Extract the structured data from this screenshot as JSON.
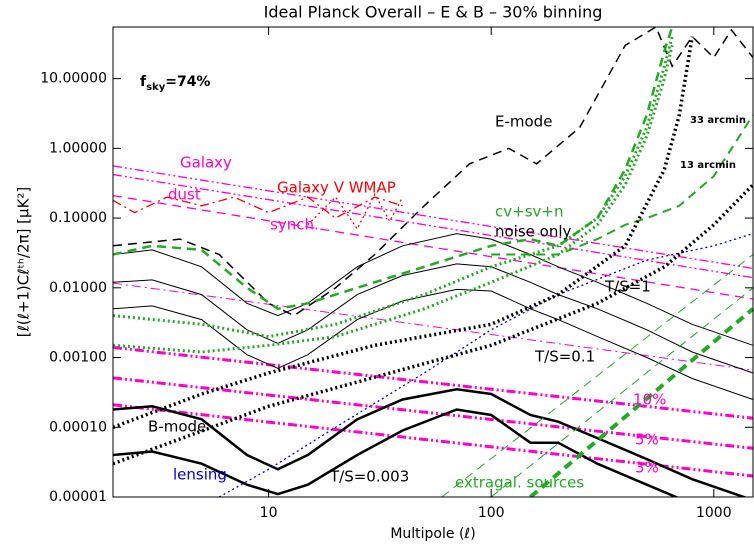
{
  "chart_data": {
    "type": "line",
    "title": "Ideal Planck Overall – E & B – 30% binning",
    "xlabel": "Multipole (ℓ)",
    "ylabel": "[ℓ(ℓ+1)Cℓᵗʰ/2π]  [μK²]",
    "xlog": true,
    "ylog": true,
    "xlim": [
      2,
      1500
    ],
    "ylim": [
      1e-05,
      55
    ],
    "xticks": [
      10,
      100,
      1000
    ],
    "yticks": [
      {
        "value": 10,
        "label": "10.00000"
      },
      {
        "value": 1,
        "label": "1.00000"
      },
      {
        "value": 0.1,
        "label": "0.10000"
      },
      {
        "value": 0.01,
        "label": "0.01000"
      },
      {
        "value": 0.001,
        "label": "0.00100"
      },
      {
        "value": 0.0001,
        "label": "0.00010"
      },
      {
        "value": 1e-05,
        "label": "0.00001"
      }
    ],
    "fsky": {
      "base": "f",
      "sub": "sky",
      "rest": "=74%"
    },
    "annotations": [
      {
        "text": "Galaxy",
        "color": "#ff00cc"
      },
      {
        "text": "dust",
        "color": "#ff00cc"
      },
      {
        "text": "Galaxy V WMAP",
        "color": "#ff0000"
      },
      {
        "text": "synch.",
        "color": "#ff00cc"
      },
      {
        "text": "E-mode",
        "color": "#000000"
      },
      {
        "text": "33 arcmin",
        "color": "#000000"
      },
      {
        "text": "13 arcmin",
        "color": "#000000"
      },
      {
        "text": "cv+sv+n",
        "color": "#22aa22"
      },
      {
        "text": "noise only",
        "color": "#000000"
      },
      {
        "text": "T/S=1",
        "color": "#000000"
      },
      {
        "text": "T/S=0.1",
        "color": "#000000"
      },
      {
        "text": "10%",
        "color": "#ff00cc"
      },
      {
        "text": "5%",
        "color": "#ff00cc"
      },
      {
        "text": "3%",
        "color": "#ff00cc"
      },
      {
        "text": "B-mode",
        "color": "#000000"
      },
      {
        "text": "lensing",
        "color": "#0000cc"
      },
      {
        "text": "T/S=0.003",
        "color": "#000000"
      },
      {
        "text": "extragal. sources",
        "color": "#22aa22"
      }
    ],
    "series": [
      {
        "color": "#ff00cc",
        "style": "dashdotdot",
        "width": 1.3,
        "x": [
          2,
          1500
        ],
        "values": [
          0.56,
          0.019
        ]
      },
      {
        "color": "#ff00cc",
        "style": "dashdotdot",
        "width": 1.3,
        "x": [
          2,
          1500
        ],
        "values": [
          0.42,
          0.014
        ]
      },
      {
        "color": "#ff00cc",
        "style": "dashed",
        "width": 1.3,
        "x": [
          2,
          1500
        ],
        "values": [
          0.21,
          0.0069
        ]
      },
      {
        "color": "#ff00cc",
        "style": "dashdot",
        "width": 1,
        "x": [
          2,
          1500
        ],
        "values": [
          0.0117,
          0.00066
        ]
      },
      {
        "color": "#ff00cc",
        "style": "dashdotdot",
        "width": 3,
        "x": [
          2,
          1500
        ],
        "values": [
          0.0014,
          0.000135
        ]
      },
      {
        "color": "#ff00cc",
        "style": "dashdotdot",
        "width": 3,
        "x": [
          2,
          1500
        ],
        "values": [
          0.00051,
          5e-05
        ]
      },
      {
        "color": "#ff00cc",
        "style": "dashdotdot",
        "width": 3,
        "x": [
          2,
          1500
        ],
        "values": [
          0.00021,
          2e-05
        ]
      },
      {
        "color": "#ff0000",
        "style": "dashdot",
        "width": 1.3,
        "x": [
          2,
          2.5,
          3.5,
          5,
          7,
          10,
          15,
          20,
          30,
          40
        ],
        "values": [
          0.18,
          0.12,
          0.2,
          0.15,
          0.2,
          0.12,
          0.2,
          0.1,
          0.2,
          0.15
        ]
      },
      {
        "color": "#ff0000",
        "style": "dotted",
        "width": 1.3,
        "x": [
          15,
          20,
          25,
          30,
          35,
          40
        ],
        "values": [
          0.08,
          0.2,
          0.07,
          0.22,
          0.09,
          0.2
        ]
      },
      {
        "color": "#000000",
        "style": "dashed",
        "width": 1.5,
        "x": [
          2,
          4,
          6,
          10,
          13,
          20,
          30,
          50,
          80,
          120,
          160,
          250,
          400,
          550,
          650,
          800,
          1000,
          1200,
          1500
        ],
        "values": [
          0.04,
          0.05,
          0.03,
          0.006,
          0.004,
          0.01,
          0.03,
          0.15,
          0.6,
          1.0,
          0.6,
          2,
          30,
          55,
          15,
          40,
          20,
          50,
          20
        ]
      },
      {
        "color": "#000000",
        "style": "solid",
        "width": 1,
        "x": [
          2,
          3,
          5,
          8,
          11,
          15,
          25,
          40,
          70,
          100,
          150,
          200,
          300,
          500,
          800,
          1500
        ],
        "values": [
          0.03,
          0.035,
          0.02,
          0.006,
          0.004,
          0.006,
          0.02,
          0.04,
          0.06,
          0.05,
          0.03,
          0.02,
          0.012,
          0.006,
          0.003,
          0.0015
        ]
      },
      {
        "color": "#000000",
        "style": "solid",
        "width": 1,
        "x": [
          2,
          3,
          5,
          8,
          11,
          15,
          25,
          40,
          70,
          100,
          150,
          200,
          300,
          500,
          800,
          1500
        ],
        "values": [
          0.012,
          0.013,
          0.008,
          0.0025,
          0.0016,
          0.0025,
          0.008,
          0.015,
          0.022,
          0.02,
          0.012,
          0.008,
          0.005,
          0.0025,
          0.0012,
          0.0006
        ]
      },
      {
        "color": "#000000",
        "style": "solid",
        "width": 1,
        "x": [
          2,
          3,
          5,
          8,
          11,
          15,
          25,
          40,
          70,
          100,
          150,
          200,
          300,
          500,
          800,
          1500
        ],
        "values": [
          0.005,
          0.0055,
          0.0035,
          0.0011,
          0.0007,
          0.0011,
          0.0035,
          0.0065,
          0.0095,
          0.009,
          0.005,
          0.0035,
          0.002,
          0.001,
          0.0005,
          0.00025
        ]
      },
      {
        "color": "#000000",
        "style": "solid",
        "width": 2.5,
        "x": [
          2,
          3,
          5,
          8,
          11,
          15,
          25,
          40,
          70,
          100,
          150,
          200,
          300,
          500,
          800,
          1500
        ],
        "values": [
          0.00018,
          0.0002,
          0.00013,
          4e-05,
          2.5e-05,
          4e-05,
          0.00013,
          0.00025,
          0.00035,
          0.0003,
          0.00015,
          0.00012,
          7e-05,
          3.5e-05,
          1.8e-05,
          9e-06
        ]
      },
      {
        "color": "#000000",
        "style": "solid",
        "width": 2.5,
        "x": [
          2,
          3,
          5,
          8,
          11,
          15,
          25,
          40,
          70,
          100,
          150,
          200,
          300,
          500,
          800,
          1500
        ],
        "values": [
          4e-05,
          4.5e-05,
          3e-05,
          1.5e-05,
          1.1e-05,
          1.5e-05,
          4e-05,
          9e-05,
          0.00018,
          0.00015,
          6e-05,
          6e-05,
          3e-05,
          1.5e-05,
          8e-06,
          4e-06
        ]
      },
      {
        "color": "#0000cc",
        "style": "dotted",
        "width": 1.3,
        "x": [
          6,
          10,
          20,
          50,
          100,
          200,
          500,
          1000,
          1500
        ],
        "values": [
          1e-05,
          2.5e-05,
          0.0001,
          0.0006,
          0.0025,
          0.008,
          0.025,
          0.04,
          0.06
        ]
      },
      {
        "color": "#22aa22",
        "style": "dotted",
        "width": 3,
        "x": [
          2,
          5,
          10,
          20,
          50,
          100,
          200,
          300,
          400,
          500,
          600,
          650
        ],
        "values": [
          0.004,
          0.003,
          0.002,
          0.003,
          0.008,
          0.02,
          0.04,
          0.1,
          0.4,
          2,
          15,
          40
        ]
      },
      {
        "color": "#22aa22",
        "style": "dotted",
        "width": 3,
        "x": [
          2,
          5,
          10,
          20,
          50,
          100,
          200,
          300,
          400,
          500,
          600,
          650
        ],
        "values": [
          0.0015,
          0.0012,
          0.0015,
          0.002,
          0.005,
          0.012,
          0.03,
          0.08,
          0.3,
          1.5,
          10,
          30
        ]
      },
      {
        "color": "#22aa22",
        "style": "dashed",
        "width": 2.5,
        "x": [
          2,
          3,
          5,
          8,
          11,
          15,
          25,
          50,
          100,
          150,
          200,
          300,
          400,
          500,
          600,
          650
        ],
        "values": [
          0.03,
          0.04,
          0.035,
          0.01,
          0.005,
          0.006,
          0.01,
          0.02,
          0.04,
          0.05,
          0.04,
          0.1,
          0.5,
          3,
          25,
          55
        ]
      },
      {
        "color": "#22aa22",
        "style": "dashed",
        "width": 2,
        "x": [
          100,
          200,
          300,
          400,
          500,
          700,
          1000,
          1500
        ],
        "values": [
          0.03,
          0.03,
          0.05,
          0.08,
          0.1,
          0.15,
          0.4,
          3
        ]
      },
      {
        "color": "#000000",
        "style": "dotted",
        "width": 3.5,
        "x": [
          2,
          5,
          10,
          30,
          100,
          200,
          400,
          600,
          700,
          800
        ],
        "values": [
          0.0001,
          0.0003,
          0.0006,
          0.0015,
          0.003,
          0.008,
          0.04,
          0.5,
          3,
          40
        ]
      },
      {
        "color": "#000000",
        "style": "dotted",
        "width": 3.5,
        "x": [
          2,
          10,
          100,
          300,
          600,
          1000,
          1500
        ],
        "values": [
          3e-05,
          0.0002,
          0.0015,
          0.006,
          0.02,
          0.08,
          0.3
        ]
      },
      {
        "color": "#22aa22",
        "style": "dashed",
        "width": 1,
        "x": [
          60,
          1500
        ],
        "values": [
          1e-05,
          0.03
        ]
      },
      {
        "color": "#22aa22",
        "style": "dashed",
        "width": 1,
        "x": [
          100,
          1500
        ],
        "values": [
          1e-05,
          0.01
        ]
      },
      {
        "color": "#22aa22",
        "style": "dashed",
        "width": 4,
        "x": [
          150,
          1500
        ],
        "values": [
          1e-05,
          0.005
        ]
      }
    ]
  }
}
